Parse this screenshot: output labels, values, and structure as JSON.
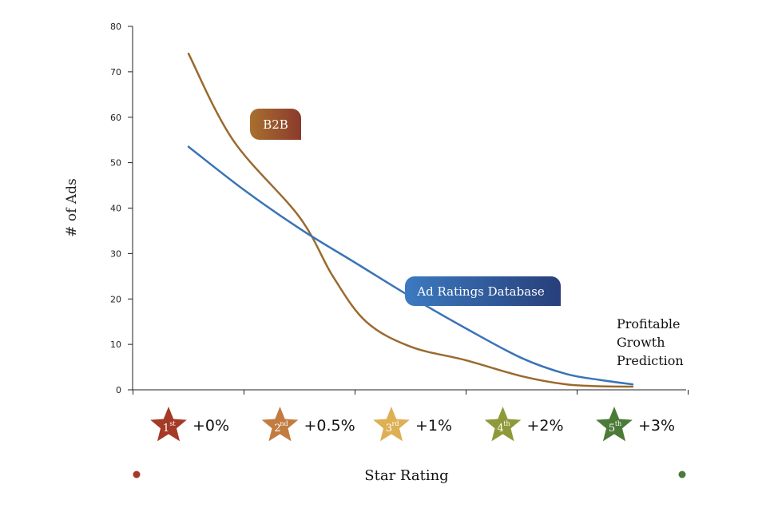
{
  "chart_data": {
    "type": "line",
    "title": "",
    "xlabel": "Star Rating",
    "ylabel": "# of Ads",
    "ylim": [
      0,
      80
    ],
    "yticks": [
      0,
      10,
      20,
      30,
      40,
      50,
      60,
      70,
      80
    ],
    "x": [
      1,
      2,
      3,
      4,
      5
    ],
    "series": [
      {
        "name": "B2B",
        "color": "#9a6a2e",
        "x": [
          1,
          1.4,
          2,
          2.3,
          2.6,
          3,
          3.5,
          4,
          4.4,
          4.7,
          5
        ],
        "values": [
          74,
          55,
          38,
          25,
          15,
          9.5,
          6.5,
          3,
          1.2,
          0.8,
          0.7
        ]
      },
      {
        "name": "Ad Ratings Database",
        "color": "#3a73b8",
        "x": [
          1,
          1.5,
          2,
          2.5,
          3,
          3.5,
          4,
          4.4,
          4.7,
          5
        ],
        "values": [
          53.5,
          44,
          35.5,
          28,
          20.5,
          13.5,
          7,
          3.5,
          2.2,
          1.2
        ]
      }
    ],
    "annotation": [
      "Profitable",
      "Growth",
      "Prediction"
    ],
    "categories": [
      {
        "number": "1",
        "suffix": "st",
        "growth": "+0%",
        "color": "#a53a26"
      },
      {
        "number": "2",
        "suffix": "nd",
        "growth": "+0.5%",
        "color": "#c27c3f"
      },
      {
        "number": "3",
        "suffix": "rd",
        "growth": "+1%",
        "color": "#ddb054"
      },
      {
        "number": "4",
        "suffix": "th",
        "growth": "+2%",
        "color": "#8e9a3a"
      },
      {
        "number": "5",
        "suffix": "th",
        "growth": "+3%",
        "color": "#4c7a38"
      }
    ],
    "gradient_colors": [
      "#a53a26",
      "#d8a35c",
      "#5b8a3c"
    ],
    "grid": false,
    "legend": "inline labels"
  }
}
